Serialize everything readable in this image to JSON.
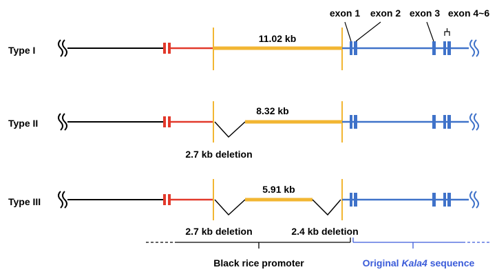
{
  "types": [
    {
      "label": "Type I",
      "segment_label": "11.02 kb",
      "deletions": []
    },
    {
      "label": "Type II",
      "segment_label": "8.32 kb",
      "deletions": [
        "2.7 kb deletion"
      ]
    },
    {
      "label": "Type III",
      "segment_label": "5.91 kb",
      "deletions": [
        "2.7 kb deletion",
        "2.4 kb deletion"
      ]
    }
  ],
  "exons": {
    "exon1": "exon 1",
    "exon2": "exon 2",
    "exon3": "exon 3",
    "exon46": "exon 4~6"
  },
  "legend": {
    "promoter": "Black rice promoter",
    "original_prefix": "Original ",
    "original_gene": "Kala4",
    "original_suffix": " sequence"
  },
  "colors": {
    "black_line": "#000000",
    "red_segment": "#e2392b",
    "yellow_segment": "#f2b632",
    "blue_segment": "#3f72c9",
    "legend_blue": "#3a5bd9"
  }
}
